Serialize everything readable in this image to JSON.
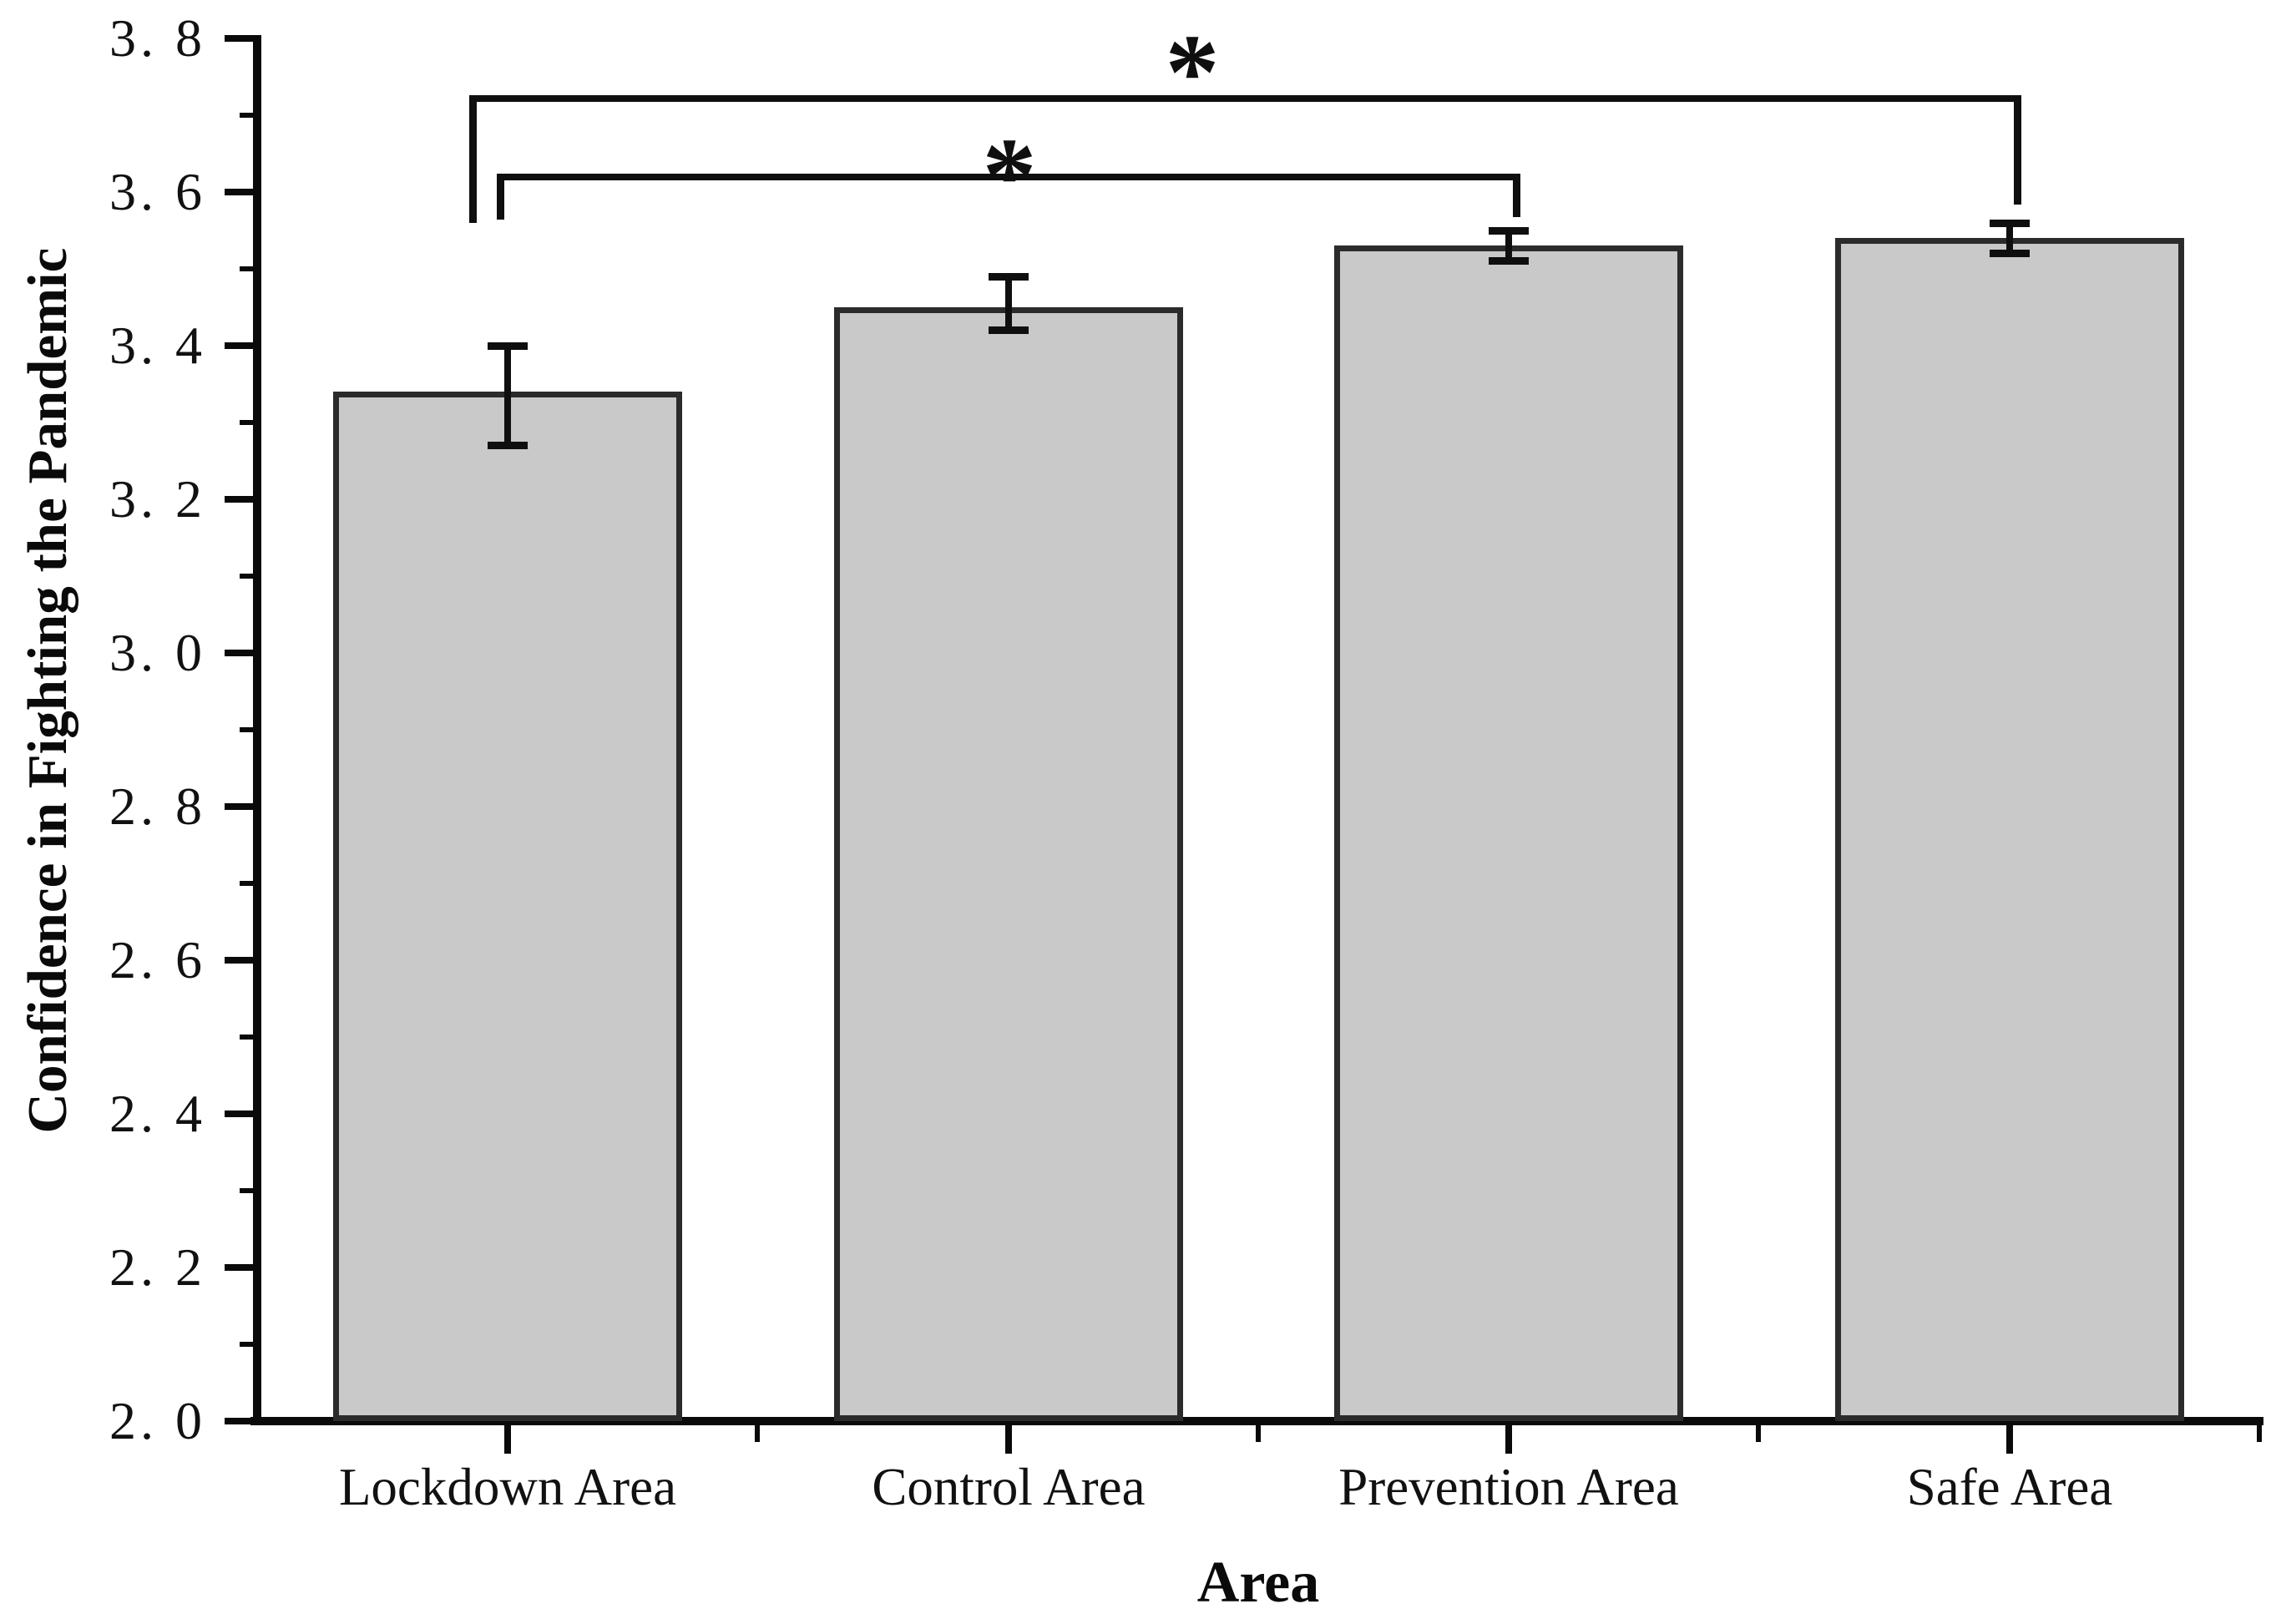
{
  "chart_data": {
    "type": "bar",
    "title": "",
    "xlabel": "Area",
    "ylabel": "Confidence in Fighting the Pandemic",
    "categories": [
      "Lockdown Area",
      "Control Area",
      "Prevention Area",
      "Safe Area"
    ],
    "values": [
      3.34,
      3.45,
      3.53,
      3.54
    ],
    "errors": [
      {
        "upper": 3.4,
        "lower": 3.27
      },
      {
        "upper": 3.49,
        "lower": 3.42
      },
      {
        "upper": 3.55,
        "lower": 3.51
      },
      {
        "upper": 3.56,
        "lower": 3.52
      }
    ],
    "ylim": [
      2.0,
      3.8
    ],
    "ytick_step": 0.2,
    "yminor_step": 0.1,
    "ytick_labels": [
      "2. 0",
      "2. 2",
      "2. 4",
      "2. 6",
      "2. 8",
      "3. 0",
      "3. 2",
      "3. 4",
      "3. 6",
      "3. 8"
    ],
    "grid": false,
    "legend": null,
    "bar_fill": "#c9c9c9",
    "bar_border": "#2b2b2b",
    "axis_color": "#0a0a0a",
    "significance_brackets": [
      {
        "from": "Lockdown Area",
        "to": "Prevention Area",
        "label": "*"
      },
      {
        "from": "Lockdown Area",
        "to": "Safe Area",
        "label": "*"
      }
    ]
  }
}
